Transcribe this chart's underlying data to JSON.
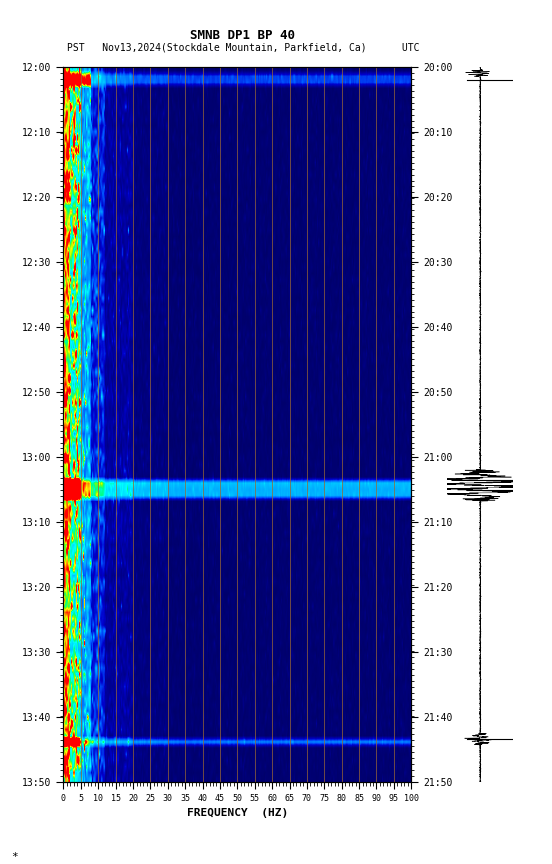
{
  "title_line1": "SMNB DP1 BP 40",
  "title_line2": "PST   Nov13,2024(Stockdale Mountain, Parkfield, Ca)      UTC",
  "xlabel": "FREQUENCY  (HZ)",
  "freq_min": 0,
  "freq_max": 100,
  "freq_ticks": [
    0,
    5,
    10,
    15,
    20,
    25,
    30,
    35,
    40,
    45,
    50,
    55,
    60,
    65,
    70,
    75,
    80,
    85,
    90,
    95,
    100
  ],
  "pst_ticks": [
    "12:00",
    "12:10",
    "12:20",
    "12:30",
    "12:40",
    "12:50",
    "13:00",
    "13:10",
    "13:20",
    "13:30",
    "13:40",
    "13:50"
  ],
  "utc_ticks": [
    "20:00",
    "20:10",
    "20:20",
    "20:30",
    "20:40",
    "20:50",
    "21:00",
    "21:10",
    "21:20",
    "21:30",
    "21:40",
    "21:50"
  ],
  "bg_color": "#ffffff",
  "n_time_bins": 116,
  "n_freq_bins": 300,
  "seed": 42,
  "event_rows_main": [
    67,
    68,
    69,
    109
  ],
  "event_rows_secondary": [
    1,
    2
  ],
  "seismogram_events": [
    0.008,
    0.578,
    0.592,
    0.94
  ]
}
